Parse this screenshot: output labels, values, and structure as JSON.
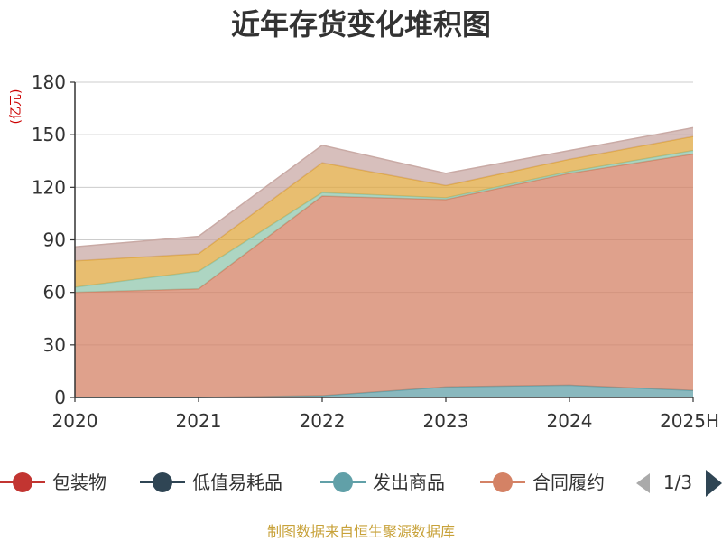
{
  "chart_data": {
    "type": "area",
    "stacked": true,
    "title": "近年存货变化堆积图",
    "ylabel": "(亿元)",
    "xlabel": "",
    "categories": [
      "2020",
      "2021",
      "2022",
      "2023",
      "2024",
      "2025H"
    ],
    "ylim": [
      0,
      180
    ],
    "yticks": [
      0,
      30,
      60,
      90,
      120,
      150,
      180
    ],
    "grid": true,
    "legend_position": "bottom",
    "series": [
      {
        "name": "包装物",
        "values": [
          0,
          0,
          0,
          0,
          0,
          0
        ],
        "color": "#c23531",
        "legend": true
      },
      {
        "name": "低值易耗品",
        "values": [
          0,
          0,
          0,
          0,
          0,
          0
        ],
        "color": "#2f4554",
        "legend": true
      },
      {
        "name": "发出商品",
        "values": [
          0,
          0,
          1,
          6,
          7,
          4
        ],
        "color": "#61a0a8",
        "legend": true
      },
      {
        "name": "合同履约",
        "values": [
          60,
          62,
          114,
          107,
          121,
          135
        ],
        "color": "#d48265",
        "legend": true
      },
      {
        "name": "",
        "values": [
          3,
          10,
          2,
          1,
          1,
          2
        ],
        "color": "#91c7ae",
        "legend": false
      },
      {
        "name": "",
        "values": [
          15,
          10,
          17,
          7,
          7,
          8
        ],
        "color": "#e0a840",
        "legend": false
      },
      {
        "name": "",
        "values": [
          8,
          10,
          10,
          7,
          5,
          5
        ],
        "color": "#c9aaa5",
        "legend": false
      }
    ],
    "legend_page": "1/3",
    "footer": "制图数据来自恒生聚源数据库"
  }
}
